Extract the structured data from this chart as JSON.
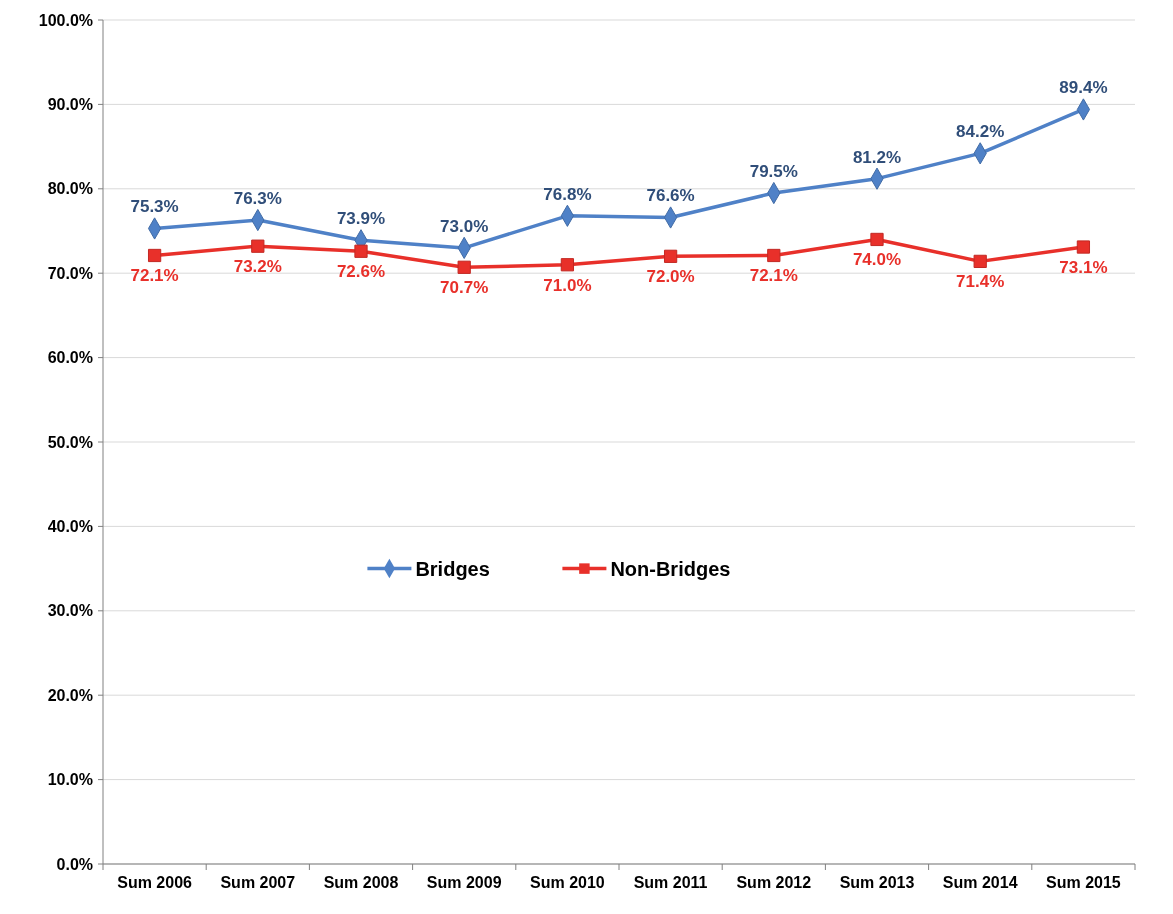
{
  "chart_data": {
    "type": "line",
    "categories": [
      "Sum 2006",
      "Sum 2007",
      "Sum 2008",
      "Sum 2009",
      "Sum 2010",
      "Sum 2011",
      "Sum 2012",
      "Sum 2013",
      "Sum 2014",
      "Sum 2015"
    ],
    "series": [
      {
        "name": "Bridges",
        "color": "#4f81c7",
        "marker": "diamond",
        "values": [
          75.3,
          76.3,
          73.9,
          73.0,
          76.8,
          76.6,
          79.5,
          81.2,
          84.2,
          89.4
        ],
        "value_labels": [
          "75.3%",
          "76.3%",
          "73.9%",
          "73.0%",
          "76.8%",
          "76.6%",
          "79.5%",
          "81.2%",
          "84.2%",
          "89.4%"
        ]
      },
      {
        "name": "Non-Bridges",
        "color": "#e8302a",
        "marker": "square",
        "values": [
          72.1,
          73.2,
          72.6,
          70.7,
          71.0,
          72.0,
          72.1,
          74.0,
          71.4,
          73.1
        ],
        "value_labels": [
          "72.1%",
          "73.2%",
          "72.6%",
          "70.7%",
          "71.0%",
          "72.0%",
          "72.1%",
          "74.0%",
          "71.4%",
          "73.1%"
        ]
      }
    ],
    "ylim": [
      0,
      100
    ],
    "yticks": [
      {
        "value": 0,
        "label": "0.0%"
      },
      {
        "value": 10,
        "label": "10.0%"
      },
      {
        "value": 20,
        "label": "20.0%"
      },
      {
        "value": 30,
        "label": "30.0%"
      },
      {
        "value": 40,
        "label": "40.0%"
      },
      {
        "value": 50,
        "label": "50.0%"
      },
      {
        "value": 60,
        "label": "60.0%"
      },
      {
        "value": 70,
        "label": "70.0%"
      },
      {
        "value": 80,
        "label": "80.0%"
      },
      {
        "value": 90,
        "label": "90.0%"
      },
      {
        "value": 100,
        "label": "100.0%"
      }
    ],
    "grid": "y",
    "legend": "center",
    "line_style": "solid"
  }
}
